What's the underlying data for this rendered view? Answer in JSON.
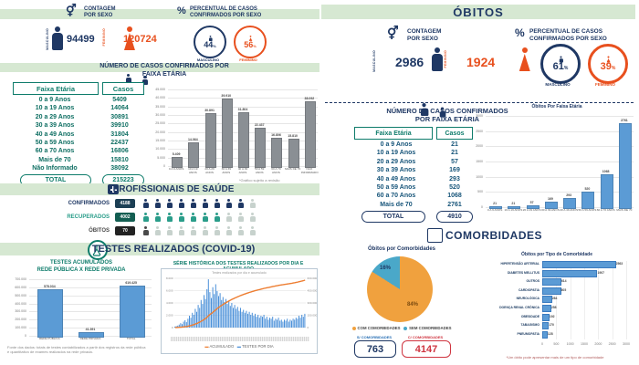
{
  "left": {
    "sexo": {
      "title1": "CONTAGEM",
      "title2": "POR SEXO",
      "male_label": "MASCULINO",
      "male_value": "94499",
      "female_label": "FEMININO",
      "female_value": "120724"
    },
    "percent": {
      "title1": "PERCENTUAL DE CASOS",
      "title2": "CONFIRMADOS POR SEXO",
      "male_pct": "44",
      "female_pct": "56",
      "pct_sign": "%",
      "male_label": "MASCULINO",
      "female_label": "FEMININO"
    },
    "faixa": {
      "title1": "NÚMERO DE CASOS CONFIRMADOS POR",
      "title2": "FAIXA ETÁRIA",
      "col1": "Faixa Etária",
      "col2": "Casos",
      "rows": [
        [
          "0 a 9 Anos",
          "5409"
        ],
        [
          "10 a 19 Anos",
          "14064"
        ],
        [
          "20 a 29 Anos",
          "30891"
        ],
        [
          "30 a 39 Anos",
          "39910"
        ],
        [
          "40 a 49 Anos",
          "31804"
        ],
        [
          "50 a 59 Anos",
          "22437"
        ],
        [
          "60 a 70 Anos",
          "16806"
        ],
        [
          "Mais de 70",
          "15810"
        ],
        [
          "Não Informado",
          "38092"
        ]
      ],
      "total_label": "TOTAL",
      "total_value": "215223",
      "footnote": "*Gráfico sujeito a revisão"
    },
    "profissionais": {
      "title": "PROFISSIONAIS DE SAÚDE",
      "rows": [
        {
          "label": "CONFIRMADOS",
          "value": "4188",
          "full": 9,
          "total": 10,
          "color": "#1f3864",
          "badge": "#1c3f54"
        },
        {
          "label": "RECUPERADOS",
          "value": "4002",
          "full": 7,
          "total": 10,
          "color": "#2a9d8a",
          "badge": "#135e52"
        },
        {
          "label": "ÓBITOS",
          "value": "70",
          "full": 1,
          "total": 10,
          "color": "#4a4a4a",
          "badge": "#222222"
        }
      ]
    },
    "testes": {
      "title": "TESTES REALIZADOS (COVID-19)",
      "acumulados_title1": "TESTES ACUMULADOS",
      "acumulados_title2": "REDE PÚBLICA X REDE PRIVADA",
      "serie_title": "SÉRIE HISTÓRICA DOS TESTES REALIZADOS POR DIA E ACUMULADO",
      "serie_subtitle": "Testes realizados por dia e acumulado",
      "legend_acumulado": "ACUMULADO",
      "legend_dia": "TESTES POR DIA",
      "footnote1": "Fonte dos dados: totais de testes contabilizados a partir dos registros da rede pública",
      "footnote2": "e quantitativo de exames realizados na rede privada."
    }
  },
  "right": {
    "title": "ÓBITOS",
    "sexo": {
      "title1": "CONTAGEM",
      "title2": "POR SEXO",
      "male_label": "MASCULINO",
      "male_value": "2986",
      "female_label": "FEMININO",
      "female_value": "1924"
    },
    "percent": {
      "title1": "PERCENTUAL DE CASOS",
      "title2": "CONFIRMADOS POR SEXO",
      "male_pct": "61",
      "female_pct": "39",
      "pct_sign": "%",
      "male_label": "MASCULINO",
      "female_label": "FEMININO"
    },
    "faixa": {
      "title1": "NÚMERO DE CASOS CONFIRMADOS",
      "title2": "POR FAIXA ETÁRIA",
      "col1": "Faixa Etária",
      "col2": "Casos",
      "rows": [
        [
          "0 a 9 Anos",
          "21"
        ],
        [
          "10 a 19 Anos",
          "21"
        ],
        [
          "20 a 29 Anos",
          "57"
        ],
        [
          "30 a 39 Anos",
          "169"
        ],
        [
          "40 a 49 Anos",
          "293"
        ],
        [
          "50 a 59 Anos",
          "520"
        ],
        [
          "60 a 70 Anos",
          "1068"
        ],
        [
          "Mais de 70",
          "2761"
        ]
      ],
      "total_label": "TOTAL",
      "total_value": "4910"
    },
    "comorbidades": {
      "title": "COMORBIDADES",
      "pie_title": "Óbitos por Comorbidades",
      "legend_com": "COM COMORBIDADES",
      "legend_sem": "SEM COMORBIDADES",
      "sem_label": "S/ COMORBIDADES",
      "sem_value": "763",
      "com_label": "C/ COMORBIDADES",
      "com_value": "4147",
      "hbar_title": "Óbitos por Tipo de Comorbidade",
      "footnote": "*Um óbito pode apresentar mais de um tipo de comorbidade"
    }
  },
  "chart_data": [
    {
      "id": "left_age_bar",
      "type": "bar",
      "title": "Número de casos confirmados por faixa etária",
      "categories": [
        "0 A 9 ANOS",
        "10 A 19 ANOS",
        "20 A 29 ANOS",
        "30 A 39 ANOS",
        "40 A 49 ANOS",
        "50 A 59 ANOS",
        "60 A 70 ANOS",
        "MAIS DE 70",
        "NÃO INFORMADO"
      ],
      "values": [
        5409,
        14064,
        30891,
        39910,
        31804,
        22437,
        16806,
        15810,
        38092
      ],
      "value_labels": [
        "5.409",
        "14.064",
        "30.891",
        "39.910",
        "31.804",
        "22.437",
        "16.806",
        "15.810",
        "38.092"
      ],
      "yticks": [
        "45.000",
        "40.000",
        "35.000",
        "30.000",
        "25.000",
        "20.000",
        "15.000",
        "10.000",
        "5.000",
        "0"
      ],
      "ylim": [
        0,
        45000
      ],
      "bar_color": "#8a8f94",
      "grid": true,
      "legend": false
    },
    {
      "id": "tests_bar",
      "type": "bar",
      "title": "Testes acumulados rede pública x rede privada",
      "categories": [
        "REDE PÚBLICA",
        "REDE PRIVADA",
        "TOTAL"
      ],
      "values": [
        578034,
        41391,
        619425
      ],
      "value_labels": [
        "578.034",
        "41.391",
        "619.425"
      ],
      "yticks": [
        "700.000",
        "600.000",
        "500.000",
        "400.000",
        "300.000",
        "200.000",
        "100.000",
        "0"
      ],
      "ylim": [
        0,
        700000
      ],
      "bar_color": "#5b9bd5",
      "grid": true,
      "legend": false
    },
    {
      "id": "tests_series",
      "type": "line",
      "title": "Série histórica dos testes realizados por dia e acumulado",
      "x_axis": "dias (estimado)",
      "grid": true,
      "legend": "bottom",
      "yticks_left": [
        "8.000",
        "6.000",
        "4.000",
        "2.000",
        "0"
      ],
      "yticks_right": [
        "600.000",
        "450.000",
        "300.000",
        "150.000",
        "0"
      ],
      "series": [
        {
          "name": "TESTES POR DIA",
          "color": "#4a90d9",
          "values": [
            2,
            3,
            4,
            6,
            9,
            7,
            12,
            15,
            11,
            18,
            24,
            20,
            30,
            26,
            38,
            32,
            46,
            40,
            56,
            48,
            66,
            58,
            78,
            98,
            72,
            60,
            82,
            68,
            88,
            74,
            64,
            70,
            56,
            62,
            52,
            58,
            48,
            54,
            44,
            50,
            40,
            46,
            38,
            42,
            34,
            40,
            32,
            36,
            30,
            34,
            28,
            32,
            26,
            30,
            24,
            28,
            22,
            26,
            20,
            24,
            22,
            26,
            18,
            22,
            16,
            20,
            18,
            22,
            14,
            18,
            16,
            20,
            14,
            16,
            12,
            16,
            14,
            18,
            12,
            16,
            14,
            18,
            16,
            20,
            18,
            24,
            20,
            26,
            22,
            28
          ]
        },
        {
          "name": "ACUMULADO",
          "color": "#ed7d31",
          "derived": "cumulative_of_daily"
        }
      ]
    },
    {
      "id": "right_age_bar",
      "type": "bar",
      "title": "Óbitos Por Faixa Etária",
      "categories": [
        "0 A 9 ANOS",
        "10 A 19 ANOS",
        "20 A 29 ANOS",
        "30 A 39 ANOS",
        "40 A 49 ANOS",
        "50 A 59 ANOS",
        "60 A 70 ANOS",
        "MAIS DE 70"
      ],
      "values": [
        21,
        21,
        57,
        169,
        293,
        520,
        1068,
        2761
      ],
      "value_labels": [
        "21",
        "21",
        "57",
        "169",
        "293",
        "520",
        "1068",
        "2761"
      ],
      "yticks": [
        "3000",
        "2500",
        "2000",
        "1500",
        "1000",
        "500",
        "0"
      ],
      "ylim": [
        0,
        3000
      ],
      "bar_color": "#5b9bd5",
      "grid": true,
      "legend": false
    },
    {
      "id": "comorbidity_pie",
      "type": "pie",
      "title": "Óbitos por Comorbidades",
      "labels": [
        "COM COMORBIDADES",
        "SEM COMORBIDADES"
      ],
      "values_pct": [
        84,
        16
      ],
      "counts": [
        4147,
        763
      ],
      "colors": [
        "#f0a13e",
        "#4aa8c9"
      ],
      "legend": "bottom"
    },
    {
      "id": "comorbidity_hbar",
      "type": "bar",
      "title": "Óbitos por Tipo de Comorbidade",
      "orientation": "horizontal",
      "categories": [
        "PNEUMOPATIA",
        "TABAGISMO",
        "OBESIDADE",
        "DOENÇA RENAL CRÔNICA",
        "NEUROLÓGICA",
        "CARDIOPATIA",
        "OUTROS",
        "DIABETES MELLITUS",
        "HIPERTENSÃO ARTERIAL"
      ],
      "values": [
        128,
        170,
        192,
        258,
        284,
        605,
        614,
        1907,
        2563
      ],
      "value_labels": [
        "128",
        "170",
        "192",
        "258",
        "284",
        "605",
        "614",
        "1907",
        "2563"
      ],
      "xticks": [
        "0",
        "500",
        "1000",
        "1500",
        "2000",
        "2500",
        "3000"
      ],
      "xlim": [
        0,
        3000
      ],
      "bar_color": "#5b9bd5",
      "grid": true,
      "legend": false
    }
  ]
}
